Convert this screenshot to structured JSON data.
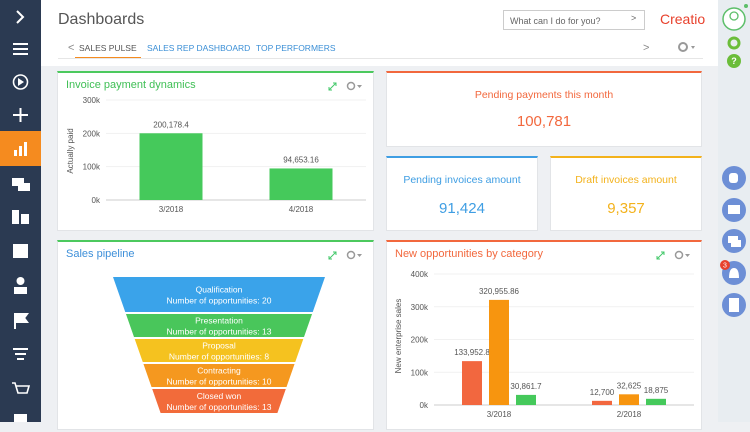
{
  "header": {
    "title": "Dashboards",
    "search_placeholder": "What can I do for you?",
    "logo": "Creatio"
  },
  "tabs": {
    "items": [
      "SALES PULSE",
      "SALES REP DASHBOARD",
      "TOP PERFORMERS"
    ],
    "active": 0
  },
  "notifications": {
    "count": 3
  },
  "widgets": {
    "invoice_payment_dynamics": {
      "title": "Invoice payment dynamics",
      "title_color": "#3fbf55",
      "color": "#4cc95e",
      "chart_data": {
        "type": "bar",
        "y_label": "Actually paid",
        "categories": [
          "3/2018",
          "4/2018"
        ],
        "values": [
          200178.4,
          94653.16
        ],
        "value_labels": [
          "200,178.4",
          "94,653.16"
        ],
        "color": "#45c95b",
        "ylim": [
          0,
          300000
        ],
        "yticks": [
          {
            "value": 0,
            "label": "0k"
          },
          {
            "value": 100000,
            "label": "100k"
          },
          {
            "value": 200000,
            "label": "200k"
          },
          {
            "value": 300000,
            "label": "300k"
          }
        ],
        "grid": true
      }
    },
    "pending_payments": {
      "title": "Pending payments this month",
      "value": "100,781",
      "color": "#f2683d"
    },
    "pending_invoices": {
      "title": "Pending invoices amount",
      "value": "91,424",
      "color": "#3f9ee3"
    },
    "draft_invoices": {
      "title": "Draft invoices amount",
      "value": "9,357",
      "color": "#f3b21c"
    },
    "sales_pipeline": {
      "title": "Sales pipeline",
      "title_color": "#3d8fd9",
      "color": "#4cc95e",
      "stages": [
        {
          "name": "Qualification",
          "count_label": "Number of opportunities: 20",
          "count": 20,
          "color": "#3aa3ea"
        },
        {
          "name": "Presentation",
          "count_label": "Number of opportunities: 13",
          "count": 13,
          "color": "#49c65b"
        },
        {
          "name": "Proposal",
          "count_label": "Number of opportunities: 8",
          "count": 8,
          "color": "#f5c21f"
        },
        {
          "name": "Contracting",
          "count_label": "Number of opportunities: 10",
          "count": 10,
          "color": "#f5981f"
        },
        {
          "name": "Closed won",
          "count_label": "Number of opportunities: 13",
          "count": 13,
          "color": "#f26b3a"
        }
      ]
    },
    "new_opportunities": {
      "title": "New opportunities by category",
      "title_color": "#f2683d",
      "color": "#f2683d",
      "chart_data": {
        "type": "grouped_bar",
        "y_label": "New enterprise sales",
        "categories": [
          "3/2018",
          "2/2018"
        ],
        "series": [
          {
            "color": "#f2673f",
            "values": [
              133952.8,
              12700
            ],
            "value_labels": [
              "133,952.8",
              "12,700"
            ]
          },
          {
            "color": "#f7950f",
            "values": [
              320955.86,
              32625
            ],
            "value_labels": [
              "320,955.86",
              "32,625"
            ]
          },
          {
            "color": "#45c95b",
            "values": [
              30861.7,
              18875
            ],
            "value_labels": [
              "30,861.7",
              "18,875"
            ]
          }
        ],
        "ylim": [
          0,
          400000
        ],
        "yticks": [
          {
            "value": 0,
            "label": "0k"
          },
          {
            "value": 100000,
            "label": "100k"
          },
          {
            "value": 200000,
            "label": "200k"
          },
          {
            "value": 300000,
            "label": "300k"
          },
          {
            "value": 400000,
            "label": "400k"
          }
        ],
        "grid": true
      }
    }
  }
}
